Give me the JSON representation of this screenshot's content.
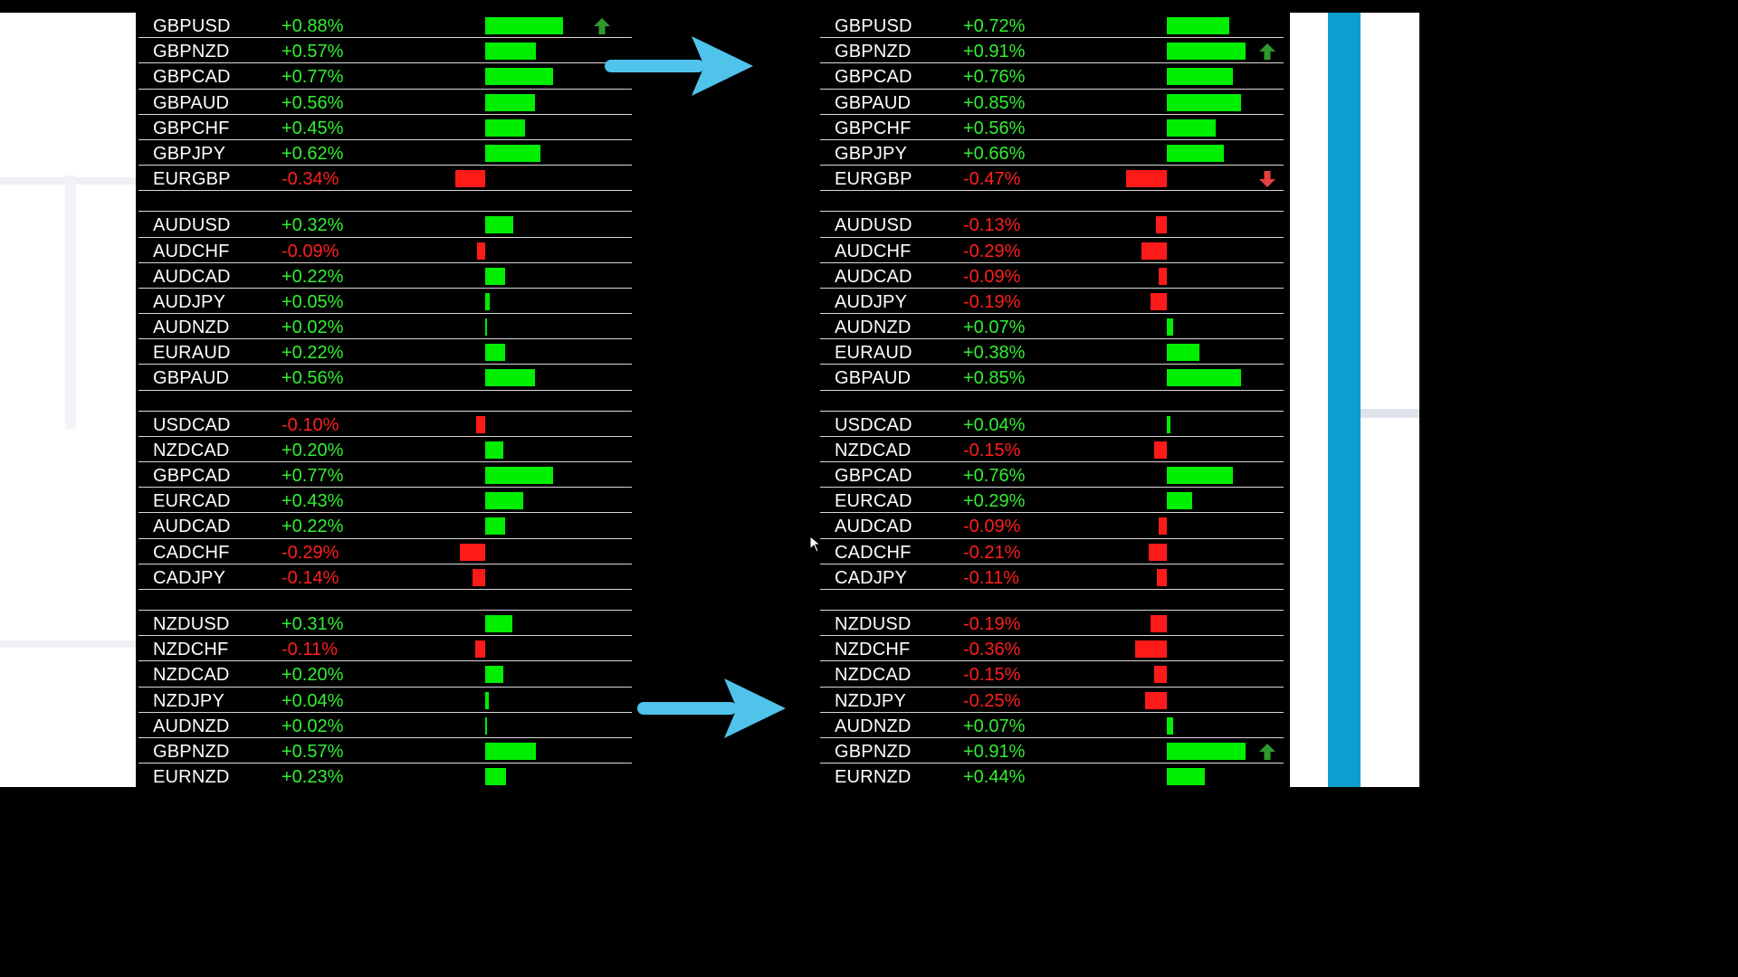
{
  "colors": {
    "positive_text": "#33ee33",
    "negative_text": "#ff1f1f",
    "positive_bar": "#00ee00",
    "negative_bar": "#ff1a1a",
    "arrow_blue": "#4fc3ea",
    "up_arrow": "#2e9a2e",
    "down_arrow": "#e84040"
  },
  "left_panel": {
    "groups": [
      {
        "rows": [
          {
            "symbol": "GBPUSD",
            "change": "+0.88%",
            "value": 0.88,
            "indicator": "up-arrow"
          },
          {
            "symbol": "GBPNZD",
            "change": "+0.57%",
            "value": 0.57
          },
          {
            "symbol": "GBPCAD",
            "change": "+0.77%",
            "value": 0.77
          },
          {
            "symbol": "GBPAUD",
            "change": "+0.56%",
            "value": 0.56
          },
          {
            "symbol": "GBPCHF",
            "change": "+0.45%",
            "value": 0.45
          },
          {
            "symbol": "GBPJPY",
            "change": "+0.62%",
            "value": 0.62
          },
          {
            "symbol": "EURGBP",
            "change": "-0.34%",
            "value": -0.34
          }
        ]
      },
      {
        "rows": [
          {
            "symbol": "AUDUSD",
            "change": "+0.32%",
            "value": 0.32
          },
          {
            "symbol": "AUDCHF",
            "change": "-0.09%",
            "value": -0.09
          },
          {
            "symbol": "AUDCAD",
            "change": "+0.22%",
            "value": 0.22
          },
          {
            "symbol": "AUDJPY",
            "change": "+0.05%",
            "value": 0.05
          },
          {
            "symbol": "AUDNZD",
            "change": "+0.02%",
            "value": 0.02
          },
          {
            "symbol": "EURAUD",
            "change": "+0.22%",
            "value": 0.22
          },
          {
            "symbol": "GBPAUD",
            "change": "+0.56%",
            "value": 0.56
          }
        ]
      },
      {
        "rows": [
          {
            "symbol": "USDCAD",
            "change": "-0.10%",
            "value": -0.1
          },
          {
            "symbol": "NZDCAD",
            "change": "+0.20%",
            "value": 0.2
          },
          {
            "symbol": "GBPCAD",
            "change": "+0.77%",
            "value": 0.77
          },
          {
            "symbol": "EURCAD",
            "change": "+0.43%",
            "value": 0.43
          },
          {
            "symbol": "AUDCAD",
            "change": "+0.22%",
            "value": 0.22
          },
          {
            "symbol": "CADCHF",
            "change": "-0.29%",
            "value": -0.29
          },
          {
            "symbol": "CADJPY",
            "change": "-0.14%",
            "value": -0.14
          }
        ]
      },
      {
        "rows": [
          {
            "symbol": "NZDUSD",
            "change": "+0.31%",
            "value": 0.31
          },
          {
            "symbol": "NZDCHF",
            "change": "-0.11%",
            "value": -0.11
          },
          {
            "symbol": "NZDCAD",
            "change": "+0.20%",
            "value": 0.2
          },
          {
            "symbol": "NZDJPY",
            "change": "+0.04%",
            "value": 0.04
          },
          {
            "symbol": "AUDNZD",
            "change": "+0.02%",
            "value": 0.02
          },
          {
            "symbol": "GBPNZD",
            "change": "+0.57%",
            "value": 0.57
          },
          {
            "symbol": "EURNZD",
            "change": "+0.23%",
            "value": 0.23
          }
        ]
      }
    ]
  },
  "right_panel": {
    "groups": [
      {
        "rows": [
          {
            "symbol": "GBPUSD",
            "change": "+0.72%",
            "value": 0.72
          },
          {
            "symbol": "GBPNZD",
            "change": "+0.91%",
            "value": 0.91,
            "indicator": "up-arrow"
          },
          {
            "symbol": "GBPCAD",
            "change": "+0.76%",
            "value": 0.76
          },
          {
            "symbol": "GBPAUD",
            "change": "+0.85%",
            "value": 0.85
          },
          {
            "symbol": "GBPCHF",
            "change": "+0.56%",
            "value": 0.56
          },
          {
            "symbol": "GBPJPY",
            "change": "+0.66%",
            "value": 0.66
          },
          {
            "symbol": "EURGBP",
            "change": "-0.47%",
            "value": -0.47,
            "indicator": "down-arrow"
          }
        ]
      },
      {
        "rows": [
          {
            "symbol": "AUDUSD",
            "change": "-0.13%",
            "value": -0.13
          },
          {
            "symbol": "AUDCHF",
            "change": "-0.29%",
            "value": -0.29
          },
          {
            "symbol": "AUDCAD",
            "change": "-0.09%",
            "value": -0.09
          },
          {
            "symbol": "AUDJPY",
            "change": "-0.19%",
            "value": -0.19
          },
          {
            "symbol": "AUDNZD",
            "change": "+0.07%",
            "value": 0.07
          },
          {
            "symbol": "EURAUD",
            "change": "+0.38%",
            "value": 0.38
          },
          {
            "symbol": "GBPAUD",
            "change": "+0.85%",
            "value": 0.85
          }
        ]
      },
      {
        "rows": [
          {
            "symbol": "USDCAD",
            "change": "+0.04%",
            "value": 0.04
          },
          {
            "symbol": "NZDCAD",
            "change": "-0.15%",
            "value": -0.15
          },
          {
            "symbol": "GBPCAD",
            "change": "+0.76%",
            "value": 0.76
          },
          {
            "symbol": "EURCAD",
            "change": "+0.29%",
            "value": 0.29
          },
          {
            "symbol": "AUDCAD",
            "change": "-0.09%",
            "value": -0.09
          },
          {
            "symbol": "CADCHF",
            "change": "-0.21%",
            "value": -0.21
          },
          {
            "symbol": "CADJPY",
            "change": "-0.11%",
            "value": -0.11
          }
        ]
      },
      {
        "rows": [
          {
            "symbol": "NZDUSD",
            "change": "-0.19%",
            "value": -0.19
          },
          {
            "symbol": "NZDCHF",
            "change": "-0.36%",
            "value": -0.36
          },
          {
            "symbol": "NZDCAD",
            "change": "-0.15%",
            "value": -0.15
          },
          {
            "symbol": "NZDJPY",
            "change": "-0.25%",
            "value": -0.25
          },
          {
            "symbol": "AUDNZD",
            "change": "+0.07%",
            "value": 0.07
          },
          {
            "symbol": "GBPNZD",
            "change": "+0.91%",
            "value": 0.91,
            "indicator": "up-arrow"
          },
          {
            "symbol": "EURNZD",
            "change": "+0.44%",
            "value": 0.44
          }
        ]
      }
    ]
  },
  "annotations": {
    "arrows": [
      "right-arrow",
      "right-arrow"
    ]
  }
}
